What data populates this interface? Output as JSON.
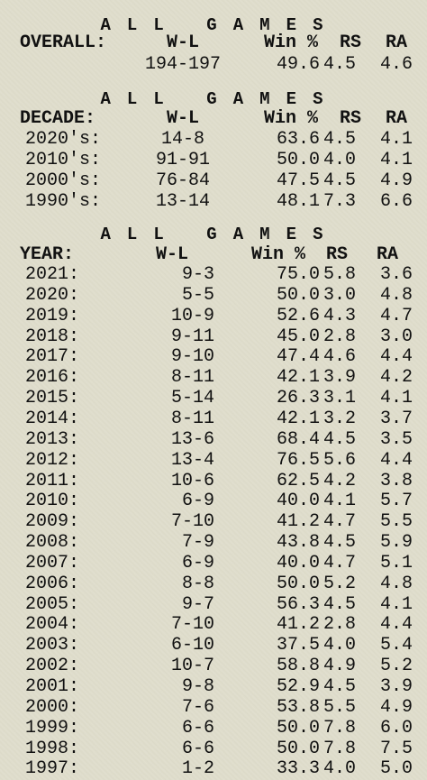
{
  "sections": [
    {
      "title": "ALL GAMES",
      "header": {
        "label": "OVERALL:",
        "wl": "W-L",
        "win": "Win %",
        "rs": "RS",
        "ra": "RA"
      },
      "rows": [
        {
          "wl": "194-197",
          "win": "49.6",
          "rs": "4.5",
          "ra": "4.6"
        }
      ]
    },
    {
      "title": "ALL GAMES",
      "header": {
        "label": "DECADE:",
        "wl": "W-L",
        "win": "Win %",
        "rs": "RS",
        "ra": "RA"
      },
      "rows": [
        {
          "label": "2020's:",
          "wl": "14-8",
          "win": "63.6",
          "rs": "4.5",
          "ra": "4.1"
        },
        {
          "label": "2010's:",
          "wl": "91-91",
          "win": "50.0",
          "rs": "4.0",
          "ra": "4.1"
        },
        {
          "label": "2000's:",
          "wl": "76-84",
          "win": "47.5",
          "rs": "4.5",
          "ra": "4.9"
        },
        {
          "label": "1990's:",
          "wl": "13-14",
          "win": "48.1",
          "rs": "7.3",
          "ra": "6.6"
        }
      ]
    },
    {
      "title": "ALL GAMES",
      "header": {
        "label": "YEAR:",
        "wl": "W-L",
        "win": "Win %",
        "rs": "RS",
        "ra": "RA"
      },
      "rows": [
        {
          "label": "2021:",
          "wl": "9-3",
          "win": "75.0",
          "rs": "5.8",
          "ra": "3.6"
        },
        {
          "label": "2020:",
          "wl": "5-5",
          "win": "50.0",
          "rs": "3.0",
          "ra": "4.8"
        },
        {
          "label": "2019:",
          "wl": "10-9",
          "win": "52.6",
          "rs": "4.3",
          "ra": "4.7"
        },
        {
          "label": "2018:",
          "wl": "9-11",
          "win": "45.0",
          "rs": "2.8",
          "ra": "3.0"
        },
        {
          "label": "2017:",
          "wl": "9-10",
          "win": "47.4",
          "rs": "4.6",
          "ra": "4.4"
        },
        {
          "label": "2016:",
          "wl": "8-11",
          "win": "42.1",
          "rs": "3.9",
          "ra": "4.2"
        },
        {
          "label": "2015:",
          "wl": "5-14",
          "win": "26.3",
          "rs": "3.1",
          "ra": "4.1"
        },
        {
          "label": "2014:",
          "wl": "8-11",
          "win": "42.1",
          "rs": "3.2",
          "ra": "3.7"
        },
        {
          "label": "2013:",
          "wl": "13-6",
          "win": "68.4",
          "rs": "4.5",
          "ra": "3.5"
        },
        {
          "label": "2012:",
          "wl": "13-4",
          "win": "76.5",
          "rs": "5.6",
          "ra": "4.4"
        },
        {
          "label": "2011:",
          "wl": "10-6",
          "win": "62.5",
          "rs": "4.2",
          "ra": "3.8"
        },
        {
          "label": "2010:",
          "wl": "6-9",
          "win": "40.0",
          "rs": "4.1",
          "ra": "5.7"
        },
        {
          "label": "2009:",
          "wl": "7-10",
          "win": "41.2",
          "rs": "4.7",
          "ra": "5.5"
        },
        {
          "label": "2008:",
          "wl": "7-9",
          "win": "43.8",
          "rs": "4.5",
          "ra": "5.9"
        },
        {
          "label": "2007:",
          "wl": "6-9",
          "win": "40.0",
          "rs": "4.7",
          "ra": "5.1"
        },
        {
          "label": "2006:",
          "wl": "8-8",
          "win": "50.0",
          "rs": "5.2",
          "ra": "4.8"
        },
        {
          "label": "2005:",
          "wl": "9-7",
          "win": "56.3",
          "rs": "4.5",
          "ra": "4.1"
        },
        {
          "label": "2004:",
          "wl": "7-10",
          "win": "41.2",
          "rs": "2.8",
          "ra": "4.4"
        },
        {
          "label": "2003:",
          "wl": "6-10",
          "win": "37.5",
          "rs": "4.0",
          "ra": "5.4"
        },
        {
          "label": "2002:",
          "wl": "10-7",
          "win": "58.8",
          "rs": "4.9",
          "ra": "5.2"
        },
        {
          "label": "2001:",
          "wl": "9-8",
          "win": "52.9",
          "rs": "4.5",
          "ra": "3.9"
        },
        {
          "label": "2000:",
          "wl": "7-6",
          "win": "53.8",
          "rs": "5.5",
          "ra": "4.9"
        },
        {
          "label": "1999:",
          "wl": "6-6",
          "win": "50.0",
          "rs": "7.8",
          "ra": "6.0"
        },
        {
          "label": "1998:",
          "wl": "6-6",
          "win": "50.0",
          "rs": "7.8",
          "ra": "7.5"
        },
        {
          "label": "1997:",
          "wl": "1-2",
          "win": "33.3",
          "rs": "4.0",
          "ra": "5.0"
        }
      ]
    }
  ]
}
